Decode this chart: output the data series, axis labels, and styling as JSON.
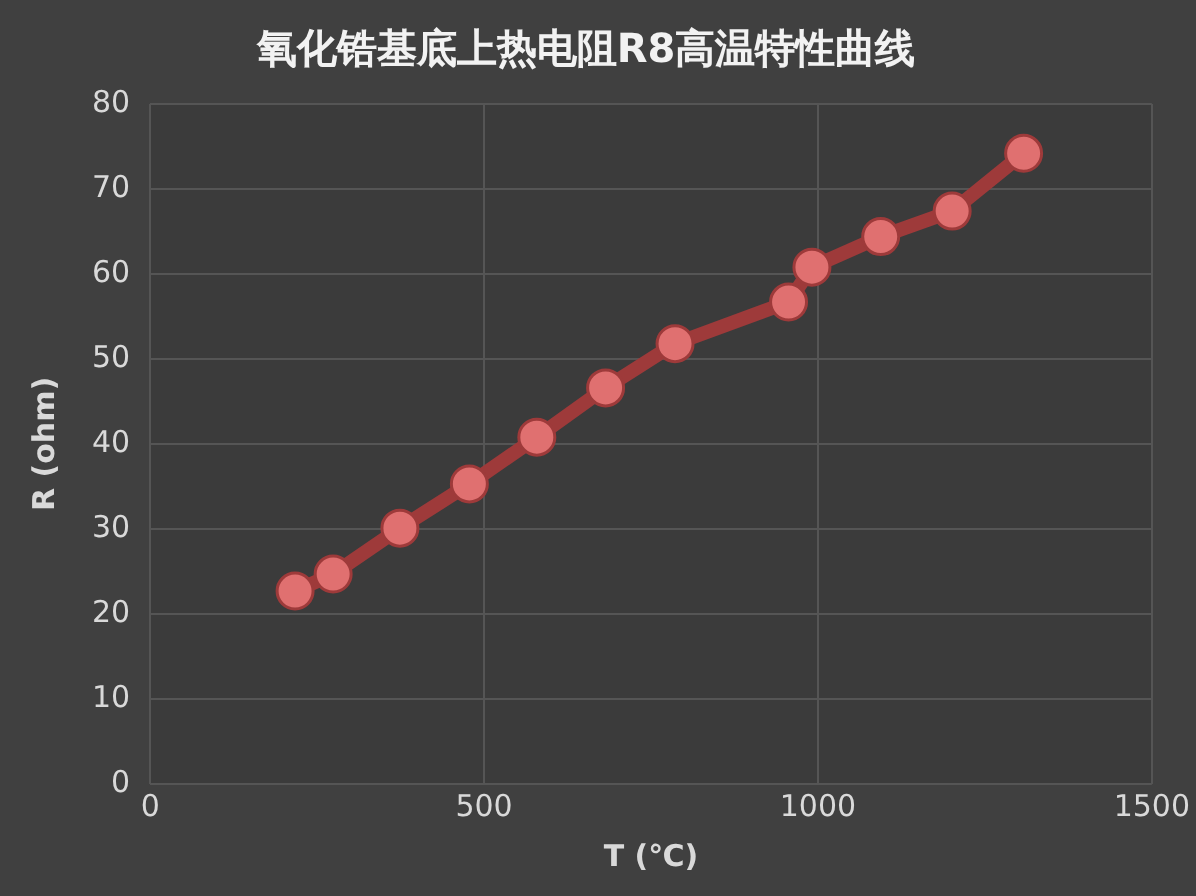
{
  "chart_data": {
    "type": "line",
    "title": "氧化锆基底上热电阻R8高温特性曲线",
    "xlabel": "T (℃)",
    "ylabel": "R (ohm)",
    "series": [
      {
        "color": "#9e3a3a",
        "x": [
          217,
          274,
          374,
          478,
          579,
          682,
          786,
          956,
          991,
          1094,
          1201,
          1308
        ],
        "values": [
          22.7,
          24.7,
          30.1,
          35.3,
          40.8,
          46.6,
          51.8,
          56.7,
          60.8,
          64.4,
          67.4,
          74.2
        ]
      }
    ],
    "xlim": [
      0,
      1500
    ],
    "xticks": [
      0,
      500,
      1000,
      1500
    ],
    "ylim": [
      0,
      80
    ],
    "yticks": [
      0,
      10,
      20,
      30,
      40,
      50,
      60,
      70,
      80
    ],
    "grid": true,
    "legend": false,
    "marker": "circle",
    "line_style": "solid"
  }
}
